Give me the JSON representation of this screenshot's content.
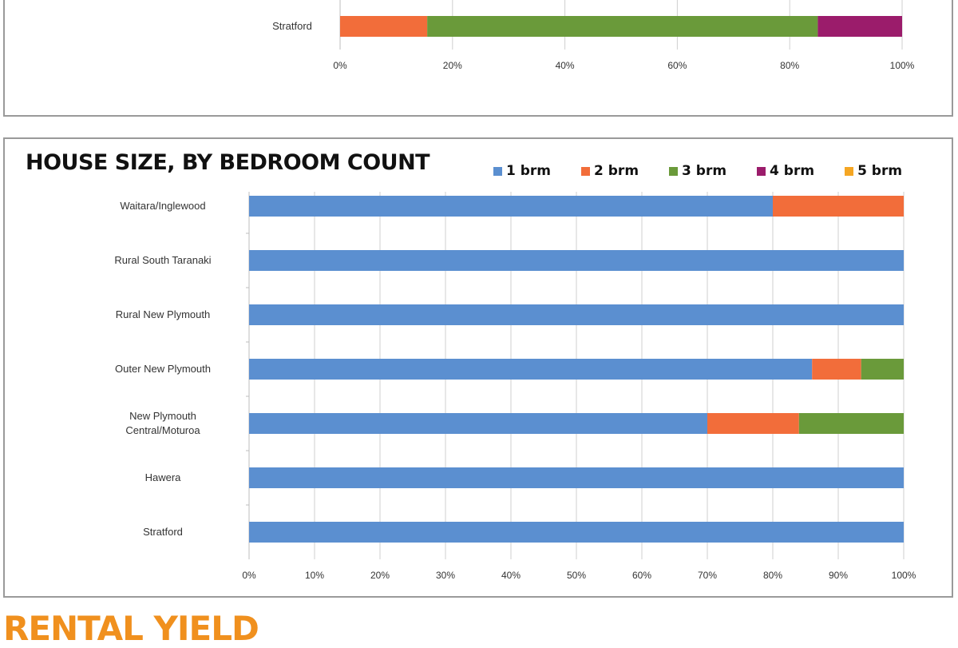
{
  "chart_data": [
    {
      "type": "bar",
      "orientation": "horizontal",
      "stacked": true,
      "categories": [
        "Stratford"
      ],
      "series": [
        {
          "values": [
            15.5
          ]
        },
        {
          "values": [
            69.5
          ]
        },
        {
          "values": [
            15
          ]
        }
      ],
      "colors": [
        "#f26d3a",
        "#6a9a3a",
        "#9b1c6b"
      ],
      "xlim": [
        0,
        100
      ],
      "x_ticks": [
        "0%",
        "20%",
        "40%",
        "60%",
        "80%",
        "100%"
      ],
      "grid": true
    },
    {
      "type": "bar",
      "orientation": "horizontal",
      "stacked": true,
      "title": "HOUSE SIZE, BY BEDROOM COUNT",
      "categories": [
        "Waitara/Inglewood",
        "Rural South Taranaki",
        "Rural New Plymouth",
        "Outer New Plymouth",
        "New Plymouth Central/Moturoa",
        "Hawera",
        "Stratford"
      ],
      "category_lines": [
        [
          "Waitara/Inglewood"
        ],
        [
          "Rural South Taranaki"
        ],
        [
          "Rural New Plymouth"
        ],
        [
          "Outer New Plymouth"
        ],
        [
          "New Plymouth",
          "Central/Moturoa"
        ],
        [
          "Hawera"
        ],
        [
          "Stratford"
        ]
      ],
      "series": [
        {
          "name": "1 brm",
          "color": "#5b8fd0",
          "values": [
            80,
            100,
            100,
            86,
            70,
            100,
            100
          ]
        },
        {
          "name": "2 brm",
          "color": "#f26d3a",
          "values": [
            20,
            0,
            0,
            7.5,
            14,
            0,
            0
          ]
        },
        {
          "name": "3 brm",
          "color": "#6a9a3a",
          "values": [
            0,
            0,
            0,
            6.5,
            16,
            0,
            0
          ]
        },
        {
          "name": "4 brm",
          "color": "#9b1c6b",
          "values": [
            0,
            0,
            0,
            0,
            0,
            0,
            0
          ]
        },
        {
          "name": "5 brm",
          "color": "#f5a623",
          "values": [
            0,
            0,
            0,
            0,
            0,
            0,
            0
          ]
        }
      ],
      "xlim": [
        0,
        100
      ],
      "x_ticks": [
        "0%",
        "10%",
        "20%",
        "30%",
        "40%",
        "50%",
        "60%",
        "70%",
        "80%",
        "90%",
        "100%"
      ],
      "grid": true,
      "legend_position": "top-right"
    }
  ],
  "section_heading": "RENTAL YIELD"
}
